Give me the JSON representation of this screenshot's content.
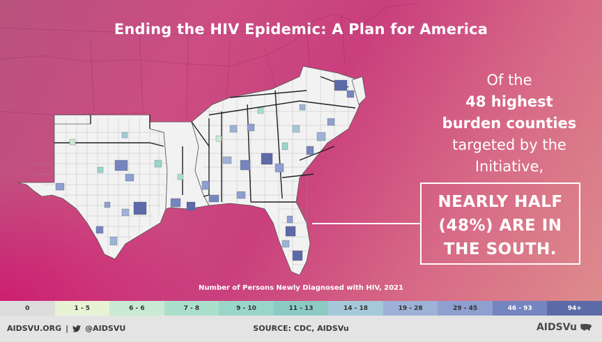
{
  "title": "Ending the HIV Epidemic: A Plan for America",
  "callout": {
    "line1": "Of the",
    "line2": "48 highest",
    "line3": "burden counties",
    "line4": "targeted by the",
    "line5": "Initiative,"
  },
  "highlight": {
    "line1": "NEARLY HALF",
    "line2": "(48%) ARE IN",
    "line3": "THE SOUTH."
  },
  "legend": {
    "title": "Number of Persons Newly Diagnosed with HIV, 2021",
    "bins": [
      {
        "label": "0",
        "color": "#dcdcdc"
      },
      {
        "label": "1 - 5",
        "color": "#e8f3d4"
      },
      {
        "label": "6 - 6",
        "color": "#c9e9d3"
      },
      {
        "label": "7 - 8",
        "color": "#aadfcc"
      },
      {
        "label": "9 - 10",
        "color": "#99d6c9"
      },
      {
        "label": "11 - 13",
        "color": "#8ccbc4"
      },
      {
        "label": "14 - 18",
        "color": "#a5c9d9"
      },
      {
        "label": "19 - 28",
        "color": "#9db2d6"
      },
      {
        "label": "29 - 45",
        "color": "#8e9fd0"
      },
      {
        "label": "46 - 93",
        "color": "#7585bf"
      },
      {
        "label": "94+",
        "color": "#5d6aa8"
      }
    ]
  },
  "footer": {
    "site": "AIDSVU.ORG",
    "separator": "|",
    "handle": "@AIDSVU",
    "source": "SOURCE: CDC, AIDSVu",
    "brand": "AIDSVu"
  },
  "colors": {
    "background_start": "#b9527e",
    "background_mid": "#c93f7d",
    "background_end": "#dd8b8c",
    "footer_bg": "#e4e4e4",
    "map_fill_base": "#f2f2f2"
  },
  "icons": {
    "twitter": "twitter-bird-icon",
    "logo": "us-map-icon"
  }
}
